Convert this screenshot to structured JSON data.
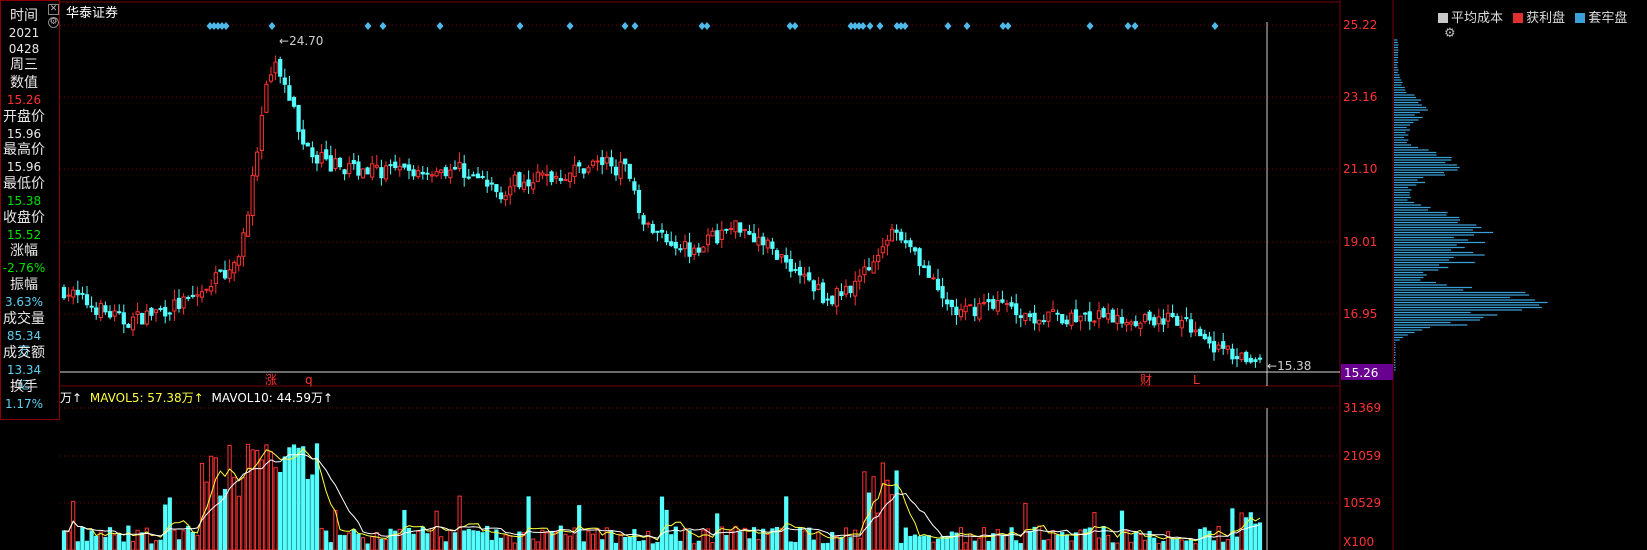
{
  "stock": {
    "name": "华泰证券"
  },
  "info_panel": {
    "items": [
      {
        "label": "时间",
        "value": "2021",
        "value2": "0428",
        "color": "#e8e8e8"
      },
      {
        "label": "",
        "value": "周三",
        "color": "#e8e8e8"
      },
      {
        "label": "数值",
        "value": "15.26",
        "color": "#ff3030"
      },
      {
        "label": "开盘价",
        "value": "15.96",
        "color": "#e8e8e8"
      },
      {
        "label": "最高价",
        "value": "15.96",
        "color": "#e8e8e8"
      },
      {
        "label": "最低价",
        "value": "15.38",
        "color": "#00e000"
      },
      {
        "label": "收盘价",
        "value": "15.52",
        "color": "#00e000"
      },
      {
        "label": "涨幅",
        "value": "-2.76%",
        "color": "#00e000"
      },
      {
        "label": "振幅",
        "value": "3.63%",
        "color": "#5fd0f0"
      },
      {
        "label": "成交量",
        "value": "85.34万",
        "color": "#5fd0f0"
      },
      {
        "label": "成交额",
        "value": "13.34亿",
        "color": "#5fd0f0"
      },
      {
        "label": "换手",
        "value": "1.17%",
        "color": "#5fd0f0"
      }
    ]
  },
  "price_axis": {
    "ticks": [
      "25.22",
      "23.16",
      "21.10",
      "19.01",
      "16.95"
    ],
    "current": "15.26"
  },
  "annotations": {
    "high_label": "24.70",
    "low_label": "15.38",
    "markers": [
      "涨",
      "q",
      "财",
      "L"
    ]
  },
  "volume_legend": {
    "vol_prefix": "万↑",
    "mavol5": "MAVOL5: 57.38万↑",
    "mavol10": "MAVOL10: 44.59万↑"
  },
  "volume_axis": {
    "ticks": [
      "31369",
      "21059",
      "10529"
    ],
    "unit": "X100"
  },
  "chip_legend": {
    "items": [
      {
        "label": "平均成本",
        "color": "#c8c8c8"
      },
      {
        "label": "获利盘",
        "color": "#e03030"
      },
      {
        "label": "套牢盘",
        "color": "#3aa0d8"
      }
    ]
  },
  "colors": {
    "up": "#ff3232",
    "down": "#54ffff",
    "ma5": "#ffff40",
    "ma10": "#ffffff",
    "grid": "#7a0000",
    "axis_text": "#ff3232",
    "chips": "#3aa0d8"
  }
}
